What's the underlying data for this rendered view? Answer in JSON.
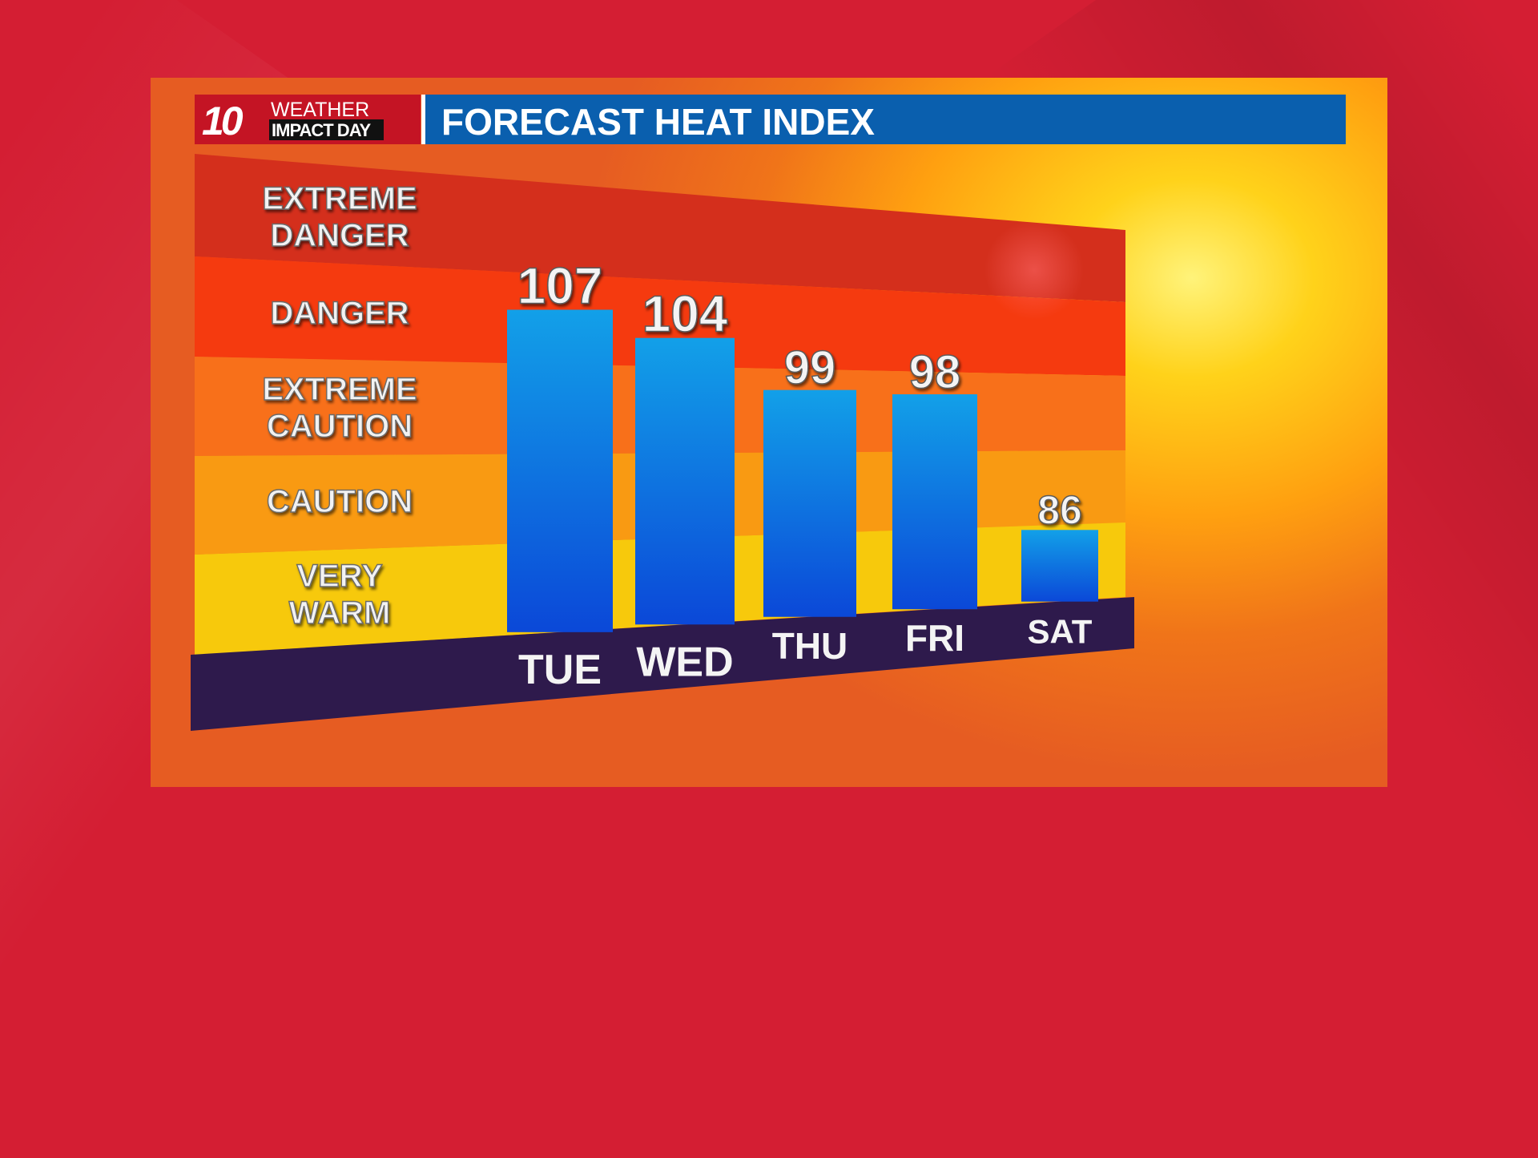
{
  "header": {
    "station_logo": "10",
    "brand_line1": "WEATHER",
    "brand_line2": "IMPACT DAY",
    "title": "FORECAST HEAT INDEX"
  },
  "colors": {
    "header_blue": "#0a5fae",
    "bar_top": "#12a0e8",
    "bar_bottom": "#0b48d8",
    "base_purple": "#2e1a4c",
    "band_extreme_danger": "#d42f1c",
    "band_danger": "#f53a0f",
    "band_extreme_caution": "#f8701a",
    "band_caution": "#f99a12",
    "band_very_warm": "#f7c90c"
  },
  "categories_legend": [
    {
      "line1": "EXTREME",
      "line2": "DANGER"
    },
    {
      "line1": "DANGER",
      "line2": ""
    },
    {
      "line1": "EXTREME",
      "line2": "CAUTION"
    },
    {
      "line1": "CAUTION",
      "line2": ""
    },
    {
      "line1": "VERY",
      "line2": "WARM"
    }
  ],
  "chart_data": {
    "type": "bar",
    "title": "FORECAST HEAT INDEX",
    "categories": [
      "TUE",
      "WED",
      "THU",
      "FRI",
      "SAT"
    ],
    "values": [
      107,
      104,
      99,
      98,
      86
    ],
    "ylim": [
      80,
      115
    ],
    "grid": false,
    "legend": "left"
  }
}
